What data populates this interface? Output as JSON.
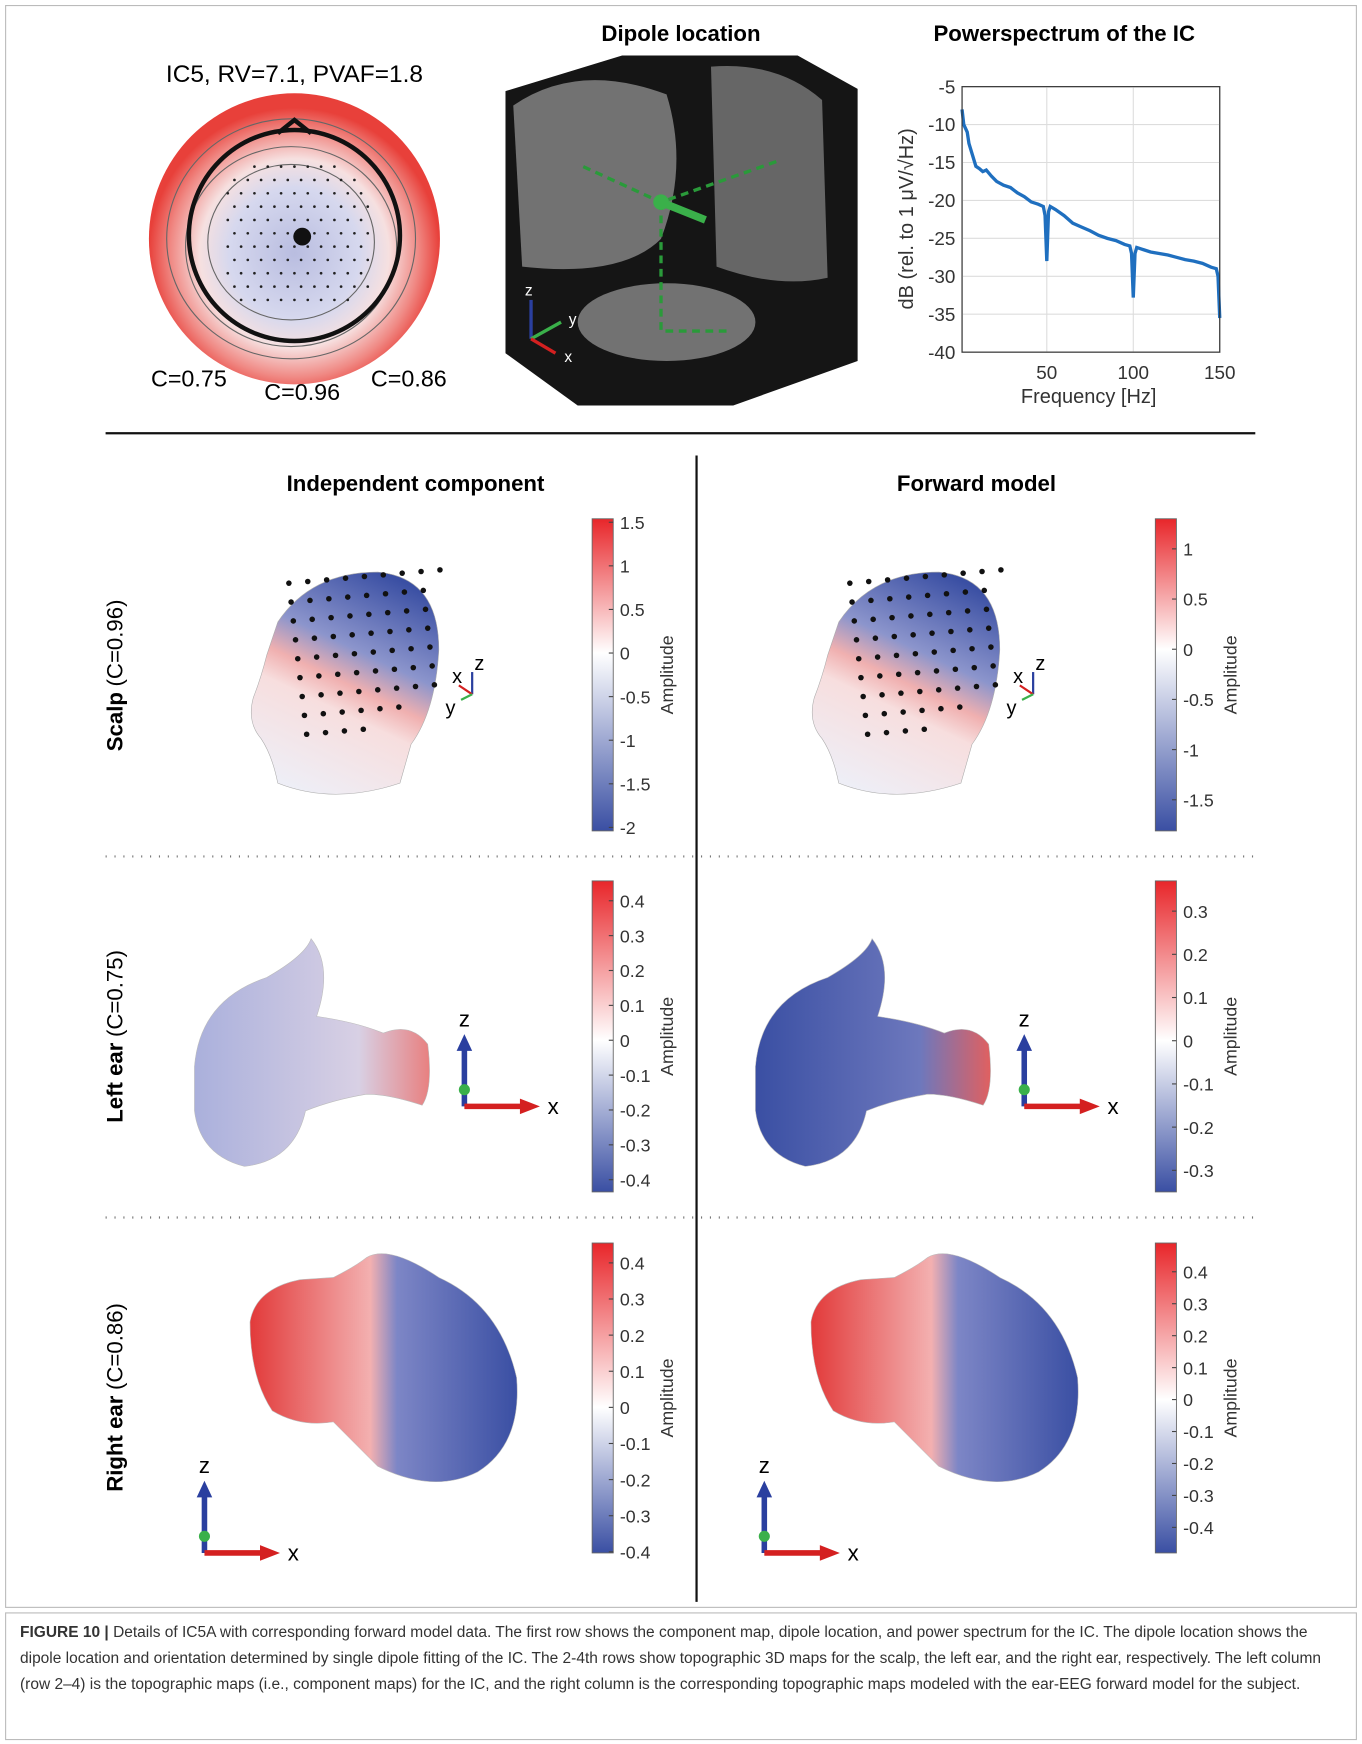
{
  "topo": {
    "title": "IC5, RV=7.1, PVAF=1.8",
    "labels": [
      "C=0.75",
      "C=0.96",
      "C=0.86"
    ]
  },
  "dipole": {
    "title": "Dipole location"
  },
  "axis_labels": [
    "x",
    "y",
    "z"
  ],
  "chart_data": {
    "type": "line",
    "title": "Powerspectrum of the IC",
    "x_label": "Frequency [Hz]",
    "y_label": "dB (rel. to 1 μV/√Hz)",
    "x": [
      1,
      2,
      3,
      4,
      5,
      7,
      9,
      11,
      13,
      15,
      18,
      21,
      25,
      29,
      33,
      37,
      41,
      45,
      48,
      49,
      50,
      51,
      52,
      55,
      60,
      65,
      70,
      75,
      80,
      85,
      90,
      95,
      98,
      99,
      100,
      101,
      102,
      106,
      110,
      115,
      120,
      125,
      130,
      135,
      140,
      145,
      148,
      149,
      150
    ],
    "series": [
      {
        "color": "#1f6fbf",
        "values": [
          -8,
          -10,
          -10.5,
          -11,
          -12.5,
          -14,
          -15.5,
          -15.8,
          -16.2,
          -16,
          -16.8,
          -17.5,
          -18,
          -18.3,
          -19,
          -19.5,
          -20.2,
          -20.5,
          -20.8,
          -22,
          -28,
          -21.5,
          -20.8,
          -21.2,
          -22,
          -23,
          -23.5,
          -24,
          -24.6,
          -25,
          -25.3,
          -25.8,
          -26,
          -27,
          -32.8,
          -27,
          -26.2,
          -26.5,
          -26.8,
          -27,
          -27.2,
          -27.5,
          -27.8,
          -28,
          -28.3,
          -28.8,
          -29,
          -30,
          -35.5
        ]
      }
    ],
    "xlim": [
      1,
      150
    ],
    "ylim": [
      -40,
      -5
    ],
    "xticks": [
      50,
      100,
      150
    ],
    "yticks": [
      -5,
      -10,
      -15,
      -20,
      -25,
      -30,
      -35,
      -40
    ],
    "grid": true
  },
  "columns": [
    "Independent component",
    "Forward model"
  ],
  "rows": [
    {
      "name": "Scalp",
      "detail": "(C=0.96)"
    },
    {
      "name": "Left ear",
      "detail": "(C=0.75)"
    },
    {
      "name": "Right ear",
      "detail": "(C=0.86)"
    }
  ],
  "colorbars": [
    {
      "lim": [
        -2.04,
        1.54
      ],
      "ticks": [
        -2,
        -1.5,
        -1,
        -0.5,
        0,
        0.5,
        1,
        1.5
      ],
      "label": "Amplitude"
    },
    {
      "lim": [
        -1.81,
        1.3
      ],
      "ticks": [
        -1.5,
        -1,
        -0.5,
        0,
        0.5,
        1
      ],
      "label": "Amplitude"
    },
    {
      "lim": [
        -0.435,
        0.457
      ],
      "ticks": [
        -0.4,
        -0.3,
        -0.2,
        -0.1,
        0,
        0.1,
        0.2,
        0.3,
        0.4
      ],
      "label": "Amplitude"
    },
    {
      "lim": [
        -0.35,
        0.37
      ],
      "ticks": [
        -0.3,
        -0.2,
        -0.1,
        0,
        0.1,
        0.2,
        0.3
      ],
      "label": "Amplitude"
    },
    {
      "lim": [
        -0.403,
        0.455
      ],
      "ticks": [
        -0.4,
        -0.3,
        -0.2,
        -0.1,
        0,
        0.1,
        0.2,
        0.3,
        0.4
      ],
      "label": "Amplitude"
    },
    {
      "lim": [
        -0.48,
        0.49
      ],
      "ticks": [
        -0.4,
        -0.3,
        -0.2,
        -0.1,
        0,
        0.1,
        0.2,
        0.3,
        0.4
      ],
      "label": "Amplitude"
    }
  ],
  "caption": {
    "label": "FIGURE 10 |",
    "text": "Details of IC5A with corresponding forward model data. The first row shows the component map, dipole location, and power spectrum for the IC. The dipole location shows the dipole location and orientation determined by single dipole fitting of the IC. The 2-4th rows show topographic 3D maps for the scalp, the left ear, and the right ear, respectively. The left column (row 2–4) is the topographic maps (i.e., component maps) for the IC, and the right column is the corresponding topographic maps modeled with the ear-EEG forward model for the subject."
  }
}
